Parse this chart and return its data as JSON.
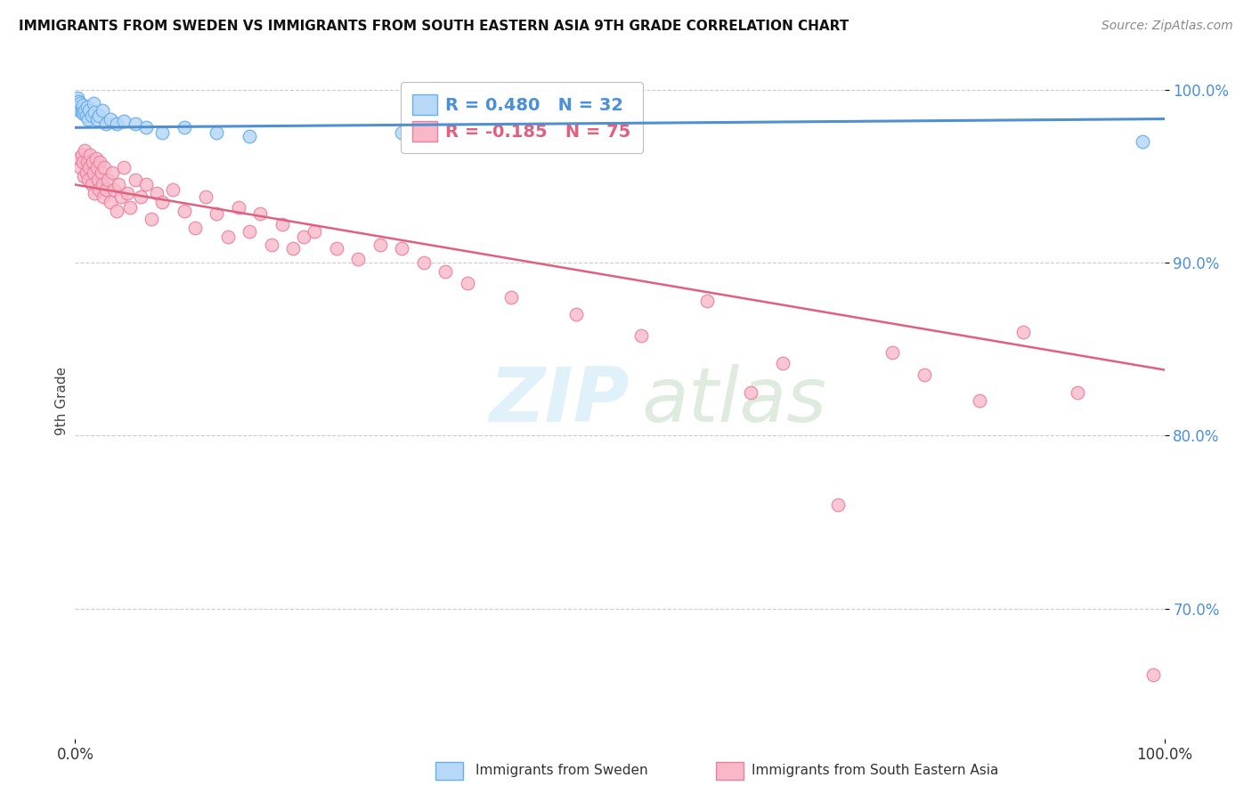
{
  "title": "IMMIGRANTS FROM SWEDEN VS IMMIGRANTS FROM SOUTH EASTERN ASIA 9TH GRADE CORRELATION CHART",
  "source": "Source: ZipAtlas.com",
  "ylabel": "9th Grade",
  "xlim": [
    0.0,
    1.0
  ],
  "ylim": [
    0.625,
    1.015
  ],
  "yticks": [
    0.7,
    0.8,
    0.9,
    1.0
  ],
  "ytick_labels": [
    "70.0%",
    "80.0%",
    "90.0%",
    "100.0%"
  ],
  "legend_blue_r": "R = 0.480",
  "legend_blue_n": "N = 32",
  "legend_pink_r": "R = -0.185",
  "legend_pink_n": "N = 75",
  "blue_fill": "#b8d8f8",
  "blue_edge": "#6aaee8",
  "pink_fill": "#f8b8c8",
  "pink_edge": "#e880a0",
  "blue_line": "#5090d0",
  "pink_line": "#e06080",
  "blue_scatter_x": [
    0.002,
    0.003,
    0.004,
    0.004,
    0.005,
    0.006,
    0.007,
    0.007,
    0.008,
    0.009,
    0.01,
    0.011,
    0.012,
    0.013,
    0.015,
    0.017,
    0.018,
    0.02,
    0.022,
    0.025,
    0.028,
    0.032,
    0.038,
    0.045,
    0.055,
    0.065,
    0.08,
    0.1,
    0.13,
    0.16,
    0.3,
    0.98
  ],
  "blue_scatter_y": [
    0.995,
    0.993,
    0.99,
    0.988,
    0.992,
    0.987,
    0.989,
    0.991,
    0.986,
    0.988,
    0.985,
    0.99,
    0.983,
    0.988,
    0.985,
    0.992,
    0.987,
    0.983,
    0.985,
    0.988,
    0.98,
    0.983,
    0.98,
    0.982,
    0.98,
    0.978,
    0.975,
    0.978,
    0.975,
    0.973,
    0.975,
    0.97
  ],
  "pink_scatter_x": [
    0.003,
    0.005,
    0.006,
    0.007,
    0.008,
    0.009,
    0.01,
    0.011,
    0.012,
    0.013,
    0.014,
    0.015,
    0.016,
    0.017,
    0.018,
    0.019,
    0.02,
    0.021,
    0.022,
    0.023,
    0.024,
    0.025,
    0.026,
    0.027,
    0.028,
    0.03,
    0.032,
    0.034,
    0.036,
    0.038,
    0.04,
    0.042,
    0.045,
    0.048,
    0.05,
    0.055,
    0.06,
    0.065,
    0.07,
    0.075,
    0.08,
    0.09,
    0.1,
    0.11,
    0.12,
    0.13,
    0.14,
    0.15,
    0.16,
    0.17,
    0.18,
    0.19,
    0.2,
    0.21,
    0.22,
    0.24,
    0.26,
    0.28,
    0.3,
    0.32,
    0.34,
    0.36,
    0.4,
    0.46,
    0.52,
    0.58,
    0.62,
    0.65,
    0.7,
    0.75,
    0.78,
    0.83,
    0.87,
    0.92,
    0.99
  ],
  "pink_scatter_y": [
    0.96,
    0.955,
    0.962,
    0.958,
    0.95,
    0.965,
    0.952,
    0.958,
    0.948,
    0.955,
    0.962,
    0.945,
    0.958,
    0.952,
    0.94,
    0.96,
    0.955,
    0.948,
    0.942,
    0.958,
    0.952,
    0.945,
    0.938,
    0.955,
    0.942,
    0.948,
    0.935,
    0.952,
    0.942,
    0.93,
    0.945,
    0.938,
    0.955,
    0.94,
    0.932,
    0.948,
    0.938,
    0.945,
    0.925,
    0.94,
    0.935,
    0.942,
    0.93,
    0.92,
    0.938,
    0.928,
    0.915,
    0.932,
    0.918,
    0.928,
    0.91,
    0.922,
    0.908,
    0.915,
    0.918,
    0.908,
    0.902,
    0.91,
    0.908,
    0.9,
    0.895,
    0.888,
    0.88,
    0.87,
    0.858,
    0.878,
    0.825,
    0.842,
    0.76,
    0.848,
    0.835,
    0.82,
    0.86,
    0.825,
    0.662
  ],
  "blue_line_x0": 0.0,
  "blue_line_y0": 0.978,
  "blue_line_x1": 1.0,
  "blue_line_y1": 0.983,
  "pink_line_x0": 0.0,
  "pink_line_y0": 0.945,
  "pink_line_x1": 1.0,
  "pink_line_y1": 0.838
}
